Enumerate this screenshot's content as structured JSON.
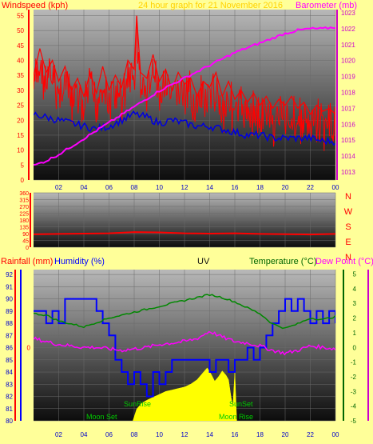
{
  "header": {
    "left_label": "Windspeed (kph)",
    "title": "24 hour graph for 21 November 2016",
    "right_label": "Barometer (mb)"
  },
  "middle": {
    "compass": [
      "N",
      "W",
      "S",
      "E",
      "N"
    ]
  },
  "bottom": {
    "rain_label": "Rainfall (mm)",
    "humidity_label": "Humidity (%)",
    "uv_label": "UV",
    "temp_label": "Temperature (°C)",
    "dew_label": "Dew Point (°C)",
    "events": {
      "sunrise": "SunRise",
      "sunset": "SunSet",
      "moonset": "Moon Set",
      "moonrise": "Moon Rise"
    }
  },
  "colors": {
    "background": "#ffff99",
    "wind": "#ff0000",
    "wind_avg": "#0000dd",
    "barometer": "#ff00ff",
    "humidity": "#0000ff",
    "temperature": "#008800",
    "dewpoint": "#ff00ff",
    "solar": "#ffff00",
    "axis_left": "#ff0000",
    "axis_right": "#cc00cc",
    "axis_temp": "#006600"
  },
  "chart_data": [
    {
      "type": "line",
      "name": "wind-baro",
      "title": "24 hour graph for 21 November 2016",
      "x_ticks": [
        "02",
        "04",
        "06",
        "08",
        "10",
        "12",
        "14",
        "16",
        "18",
        "20",
        "22",
        "00"
      ],
      "left_axis": {
        "label": "Windspeed (kph)",
        "ticks": [
          0,
          5,
          10,
          15,
          20,
          25,
          30,
          35,
          40,
          45,
          50,
          55
        ],
        "range": [
          0,
          57
        ]
      },
      "right_axis": {
        "label": "Barometer (mb)",
        "ticks": [
          1013,
          1014,
          1015,
          1016,
          1017,
          1018,
          1019,
          1020,
          1021,
          1022,
          1023
        ],
        "range": [
          1012.5,
          1023.2
        ]
      },
      "gust_points": [
        [
          0,
          35
        ],
        [
          0.5,
          44
        ],
        [
          1,
          36
        ],
        [
          1.5,
          40
        ],
        [
          2,
          33
        ],
        [
          2.5,
          38
        ],
        [
          3,
          30
        ],
        [
          3.5,
          34
        ],
        [
          4,
          28
        ],
        [
          4.5,
          36
        ],
        [
          5,
          29
        ],
        [
          5.5,
          38
        ],
        [
          6,
          30
        ],
        [
          6.5,
          35
        ],
        [
          7,
          31
        ],
        [
          7.5,
          40
        ],
        [
          8,
          37
        ],
        [
          8.2,
          55
        ],
        [
          8.5,
          36
        ],
        [
          9,
          34
        ],
        [
          9.5,
          42
        ],
        [
          10,
          33
        ],
        [
          10.5,
          37
        ],
        [
          11,
          30
        ],
        [
          11.5,
          36
        ],
        [
          12,
          32
        ],
        [
          12.5,
          34
        ],
        [
          13,
          28
        ],
        [
          13.5,
          33
        ],
        [
          14,
          31
        ],
        [
          14.5,
          36
        ],
        [
          15,
          28
        ],
        [
          15.5,
          33
        ],
        [
          16,
          27
        ],
        [
          16.5,
          30
        ],
        [
          17,
          26
        ],
        [
          17.5,
          29
        ],
        [
          18,
          25
        ],
        [
          18.5,
          28
        ],
        [
          19,
          24
        ],
        [
          19.5,
          27
        ],
        [
          20,
          25
        ],
        [
          20.5,
          28
        ],
        [
          21,
          24
        ],
        [
          21.5,
          26
        ],
        [
          22,
          22
        ],
        [
          22.5,
          25
        ],
        [
          23,
          23
        ],
        [
          23.5,
          24
        ],
        [
          24,
          22
        ]
      ],
      "avg_points": [
        [
          0,
          22
        ],
        [
          1,
          21
        ],
        [
          2,
          20
        ],
        [
          3,
          19
        ],
        [
          4,
          18
        ],
        [
          5,
          17
        ],
        [
          6,
          18
        ],
        [
          7,
          20
        ],
        [
          8,
          22
        ],
        [
          9,
          21
        ],
        [
          10,
          19
        ],
        [
          11,
          20
        ],
        [
          12,
          19
        ],
        [
          13,
          18
        ],
        [
          14,
          18
        ],
        [
          15,
          17
        ],
        [
          16,
          16
        ],
        [
          17,
          15
        ],
        [
          18,
          15
        ],
        [
          19,
          14
        ],
        [
          20,
          14
        ],
        [
          21,
          14
        ],
        [
          22,
          14
        ],
        [
          23,
          13
        ],
        [
          24,
          13
        ]
      ],
      "baro_points": [
        [
          0,
          1013.4
        ],
        [
          1,
          1013.7
        ],
        [
          2,
          1014.1
        ],
        [
          3,
          1014.6
        ],
        [
          4,
          1015.1
        ],
        [
          5,
          1015.6
        ],
        [
          6,
          1016.1
        ],
        [
          7,
          1016.6
        ],
        [
          8,
          1017.1
        ],
        [
          9,
          1017.6
        ],
        [
          10,
          1018.1
        ],
        [
          11,
          1018.5
        ],
        [
          12,
          1018.9
        ],
        [
          13,
          1019.3
        ],
        [
          14,
          1019.7
        ],
        [
          15,
          1020.1
        ],
        [
          16,
          1020.5
        ],
        [
          17,
          1020.8
        ],
        [
          18,
          1021.1
        ],
        [
          19,
          1021.4
        ],
        [
          20,
          1021.7
        ],
        [
          21,
          1021.9
        ],
        [
          22,
          1022.0
        ],
        [
          23,
          1022.0
        ],
        [
          24,
          1022.1
        ]
      ]
    },
    {
      "type": "line",
      "name": "wind-direction",
      "left_axis": {
        "ticks": [
          0,
          45,
          90,
          135,
          180,
          225,
          270,
          315,
          360
        ],
        "range": [
          0,
          360
        ]
      },
      "direction_points": [
        [
          0,
          85
        ],
        [
          2,
          88
        ],
        [
          4,
          90
        ],
        [
          6,
          92
        ],
        [
          8,
          100
        ],
        [
          10,
          98
        ],
        [
          12,
          92
        ],
        [
          14,
          90
        ],
        [
          16,
          92
        ],
        [
          18,
          88
        ],
        [
          20,
          86
        ],
        [
          22,
          84
        ],
        [
          24,
          88
        ]
      ]
    },
    {
      "type": "line",
      "name": "temp-humidity",
      "humidity_axis": {
        "ticks": [
          80,
          81,
          82,
          83,
          84,
          85,
          86,
          87,
          88,
          89,
          90,
          91,
          92
        ],
        "range": [
          80,
          92.4
        ]
      },
      "temp_axis": {
        "ticks": [
          -5,
          -4,
          -3,
          -2,
          -1,
          0,
          1,
          2,
          3,
          4,
          5
        ],
        "range": [
          -5,
          5.3
        ]
      },
      "rain_axis": {
        "ticks": [
          0
        ],
        "zero_temp": 0
      },
      "humidity_points": [
        [
          0,
          89
        ],
        [
          1,
          88
        ],
        [
          1.5,
          89
        ],
        [
          2,
          88
        ],
        [
          2.5,
          90
        ],
        [
          3,
          90
        ],
        [
          4,
          90
        ],
        [
          5,
          89
        ],
        [
          5.5,
          88
        ],
        [
          6,
          87
        ],
        [
          6.5,
          85
        ],
        [
          7,
          84
        ],
        [
          7.5,
          83
        ],
        [
          8,
          84
        ],
        [
          8.5,
          83
        ],
        [
          9,
          82
        ],
        [
          9.5,
          84
        ],
        [
          10,
          83
        ],
        [
          10.5,
          84
        ],
        [
          11,
          85
        ],
        [
          12,
          85
        ],
        [
          13,
          85
        ],
        [
          13.5,
          85
        ],
        [
          14,
          84
        ],
        [
          14.5,
          85
        ],
        [
          15,
          85
        ],
        [
          15.5,
          84
        ],
        [
          16,
          85
        ],
        [
          16.5,
          85
        ],
        [
          17,
          86
        ],
        [
          17.5,
          85
        ],
        [
          18,
          86
        ],
        [
          18.5,
          87
        ],
        [
          19,
          88
        ],
        [
          19.5,
          89
        ],
        [
          20,
          90
        ],
        [
          20.5,
          89
        ],
        [
          21,
          90
        ],
        [
          21.5,
          89
        ],
        [
          22,
          88
        ],
        [
          22.5,
          89
        ],
        [
          23,
          88
        ],
        [
          23.5,
          89
        ],
        [
          24,
          88
        ]
      ],
      "temp_points": [
        [
          0,
          2.3
        ],
        [
          1,
          2.2
        ],
        [
          2,
          1.8
        ],
        [
          3,
          1.6
        ],
        [
          4,
          1.4
        ],
        [
          5,
          1.7
        ],
        [
          6,
          2.0
        ],
        [
          7,
          2.2
        ],
        [
          8,
          2.4
        ],
        [
          9,
          2.6
        ],
        [
          10,
          2.8
        ],
        [
          11,
          3.0
        ],
        [
          12,
          3.2
        ],
        [
          13,
          3.4
        ],
        [
          14,
          3.6
        ],
        [
          15,
          3.4
        ],
        [
          16,
          3.1
        ],
        [
          17,
          2.7
        ],
        [
          18,
          2.3
        ],
        [
          19,
          1.6
        ],
        [
          20,
          1.3
        ],
        [
          21,
          1.6
        ],
        [
          22,
          2.0
        ],
        [
          23,
          1.9
        ],
        [
          24,
          2.1
        ]
      ],
      "dew_points": [
        [
          0,
          0.6
        ],
        [
          1,
          0.4
        ],
        [
          2,
          0.2
        ],
        [
          3,
          0.1
        ],
        [
          4,
          0.0
        ],
        [
          5,
          0.0
        ],
        [
          6,
          -0.1
        ],
        [
          7,
          -0.2
        ],
        [
          8,
          -0.1
        ],
        [
          9,
          0.0
        ],
        [
          10,
          0.2
        ],
        [
          11,
          0.3
        ],
        [
          12,
          0.4
        ],
        [
          13,
          0.6
        ],
        [
          14,
          1.1
        ],
        [
          15,
          0.7
        ],
        [
          16,
          0.4
        ],
        [
          17,
          0.3
        ],
        [
          18,
          0.1
        ],
        [
          19,
          -0.2
        ],
        [
          20,
          -0.4
        ],
        [
          21,
          -0.2
        ],
        [
          22,
          0.1
        ],
        [
          23,
          0.0
        ],
        [
          24,
          -0.1
        ]
      ],
      "solar_points": [
        [
          7.9,
          0
        ],
        [
          8.2,
          0.8
        ],
        [
          8.6,
          1.2
        ],
        [
          9,
          1.4
        ],
        [
          9.5,
          1.6
        ],
        [
          10,
          1.8
        ],
        [
          10.5,
          2.0
        ],
        [
          11,
          2.1
        ],
        [
          11.5,
          2.2
        ],
        [
          12,
          2.3
        ],
        [
          12.5,
          2.5
        ],
        [
          13,
          2.8
        ],
        [
          13.5,
          3.3
        ],
        [
          13.8,
          3.6
        ],
        [
          14.1,
          3.2
        ],
        [
          14.4,
          2.7
        ],
        [
          14.7,
          3.0
        ],
        [
          15.0,
          3.4
        ],
        [
          15.3,
          3.1
        ],
        [
          15.5,
          2.8
        ],
        [
          15.7,
          1.6
        ],
        [
          15.85,
          1.0
        ],
        [
          16.0,
          3.3
        ],
        [
          16.15,
          0
        ]
      ]
    }
  ]
}
